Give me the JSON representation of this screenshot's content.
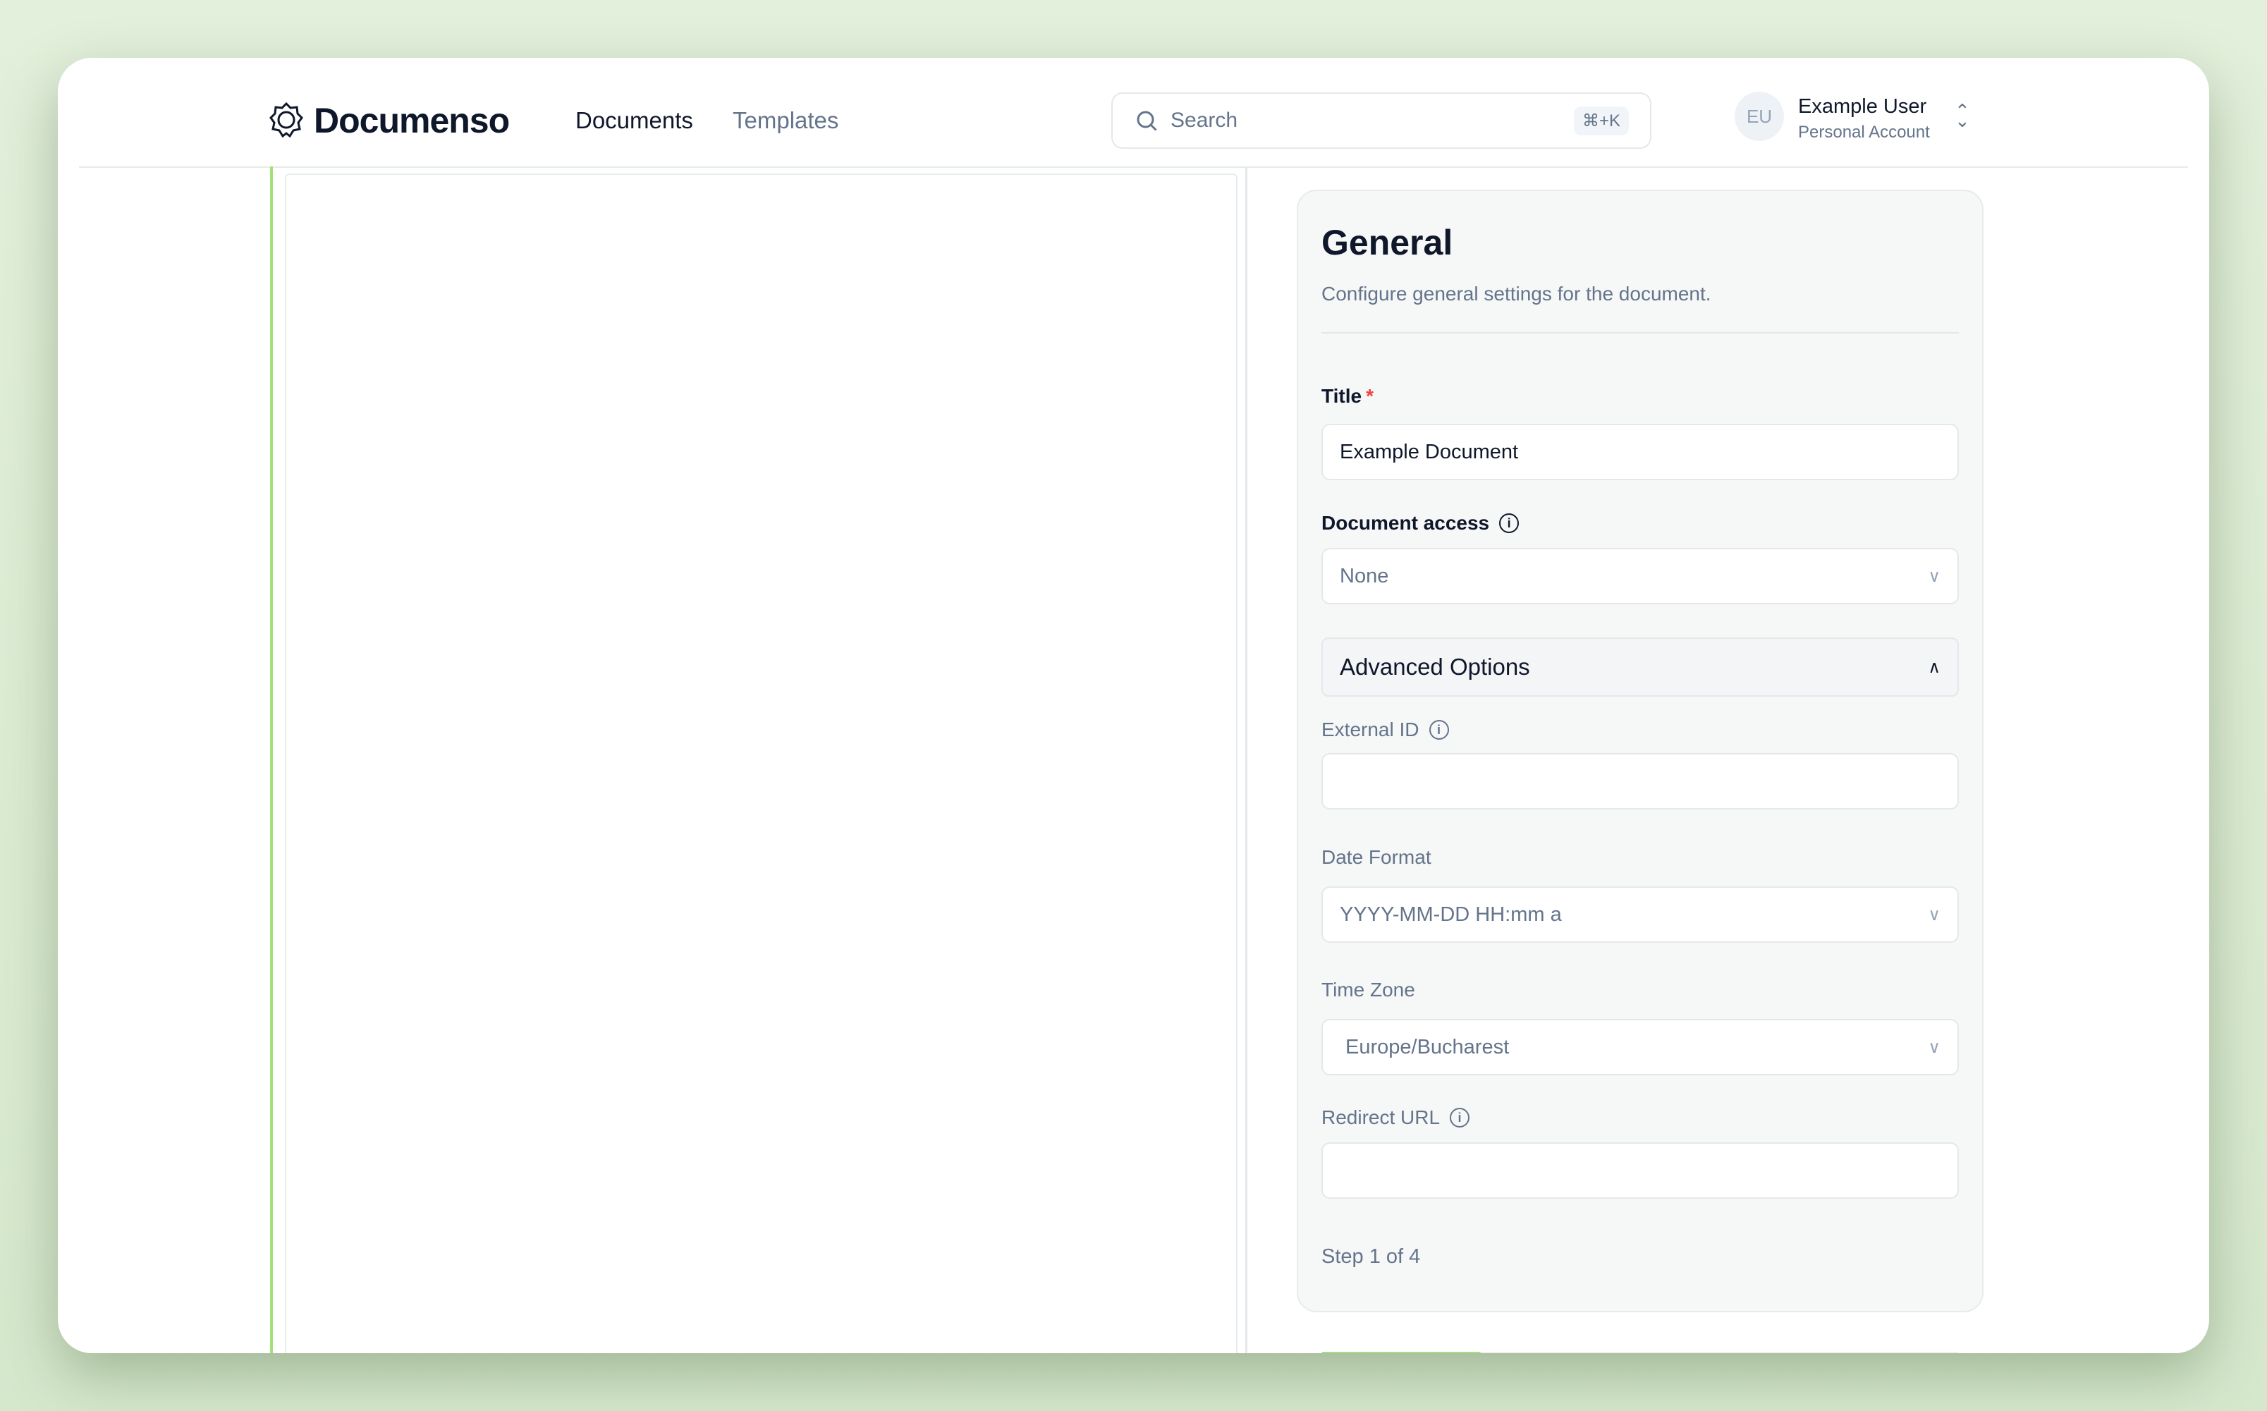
{
  "header": {
    "logo": "Documenso",
    "nav": [
      {
        "label": "Documents",
        "active": true
      },
      {
        "label": "Templates",
        "active": false
      }
    ],
    "search": {
      "placeholder": "Search",
      "shortcut": "⌘+K"
    },
    "user": {
      "initials": "EU",
      "name": "Example User",
      "account": "Personal Account"
    }
  },
  "panel": {
    "title": "General",
    "subtitle": "Configure general settings for the document.",
    "title_field": {
      "label": "Title",
      "required_mark": "*",
      "value": "Example Document"
    },
    "access": {
      "label": "Document access",
      "value": "None"
    },
    "advanced": {
      "label": "Advanced Options",
      "expanded": true
    },
    "external_id": {
      "label": "External ID",
      "value": ""
    },
    "date_format": {
      "label": "Date Format",
      "value": "YYYY-MM-DD HH:mm a"
    },
    "time_zone": {
      "label": "Time Zone",
      "value": "Europe/Bucharest"
    },
    "redirect_url": {
      "label": "Redirect URL",
      "value": ""
    },
    "step": {
      "text": "Step 1 of 4",
      "progress_percent": 25
    }
  },
  "colors": {
    "accent": "#a3e07a",
    "background": "#e3f0dc"
  }
}
